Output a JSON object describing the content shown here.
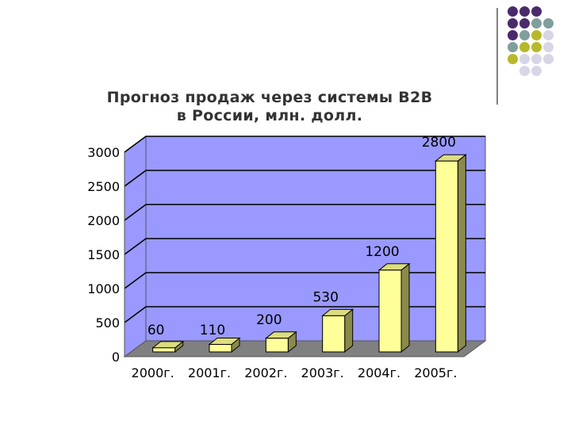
{
  "decor_colors": [
    "#4b2a6c",
    "#7f9f9c",
    "#b7b82a",
    "#d6d6e6"
  ],
  "chart_data": {
    "type": "bar",
    "title": "Прогноз продаж через системы B2B в России, млн. долл.",
    "title_lines": [
      "Прогноз продаж через системы B2B",
      "в России, млн. долл."
    ],
    "categories": [
      "2000г.",
      "2001г.",
      "2002г.",
      "2003г.",
      "2004г.",
      "2005г."
    ],
    "values": [
      60,
      110,
      200,
      530,
      1200,
      2800
    ],
    "value_labels": [
      "60",
      "110",
      "200",
      "530",
      "1200",
      "2800"
    ],
    "yticks": [
      0,
      500,
      1000,
      1500,
      2000,
      2500,
      3000
    ],
    "ytick_labels": [
      "0",
      "500",
      "1000",
      "1500",
      "2000",
      "2500",
      "3000"
    ],
    "ylim": [
      0,
      3000
    ],
    "grid": true,
    "legend": "none",
    "colors": {
      "wall": "#9999ff",
      "floor": "#808080",
      "bar_front": "#ffff99",
      "bar_side": "#8a8a4a",
      "bar_top": "#dcdc80",
      "gridline": "#000000"
    }
  }
}
